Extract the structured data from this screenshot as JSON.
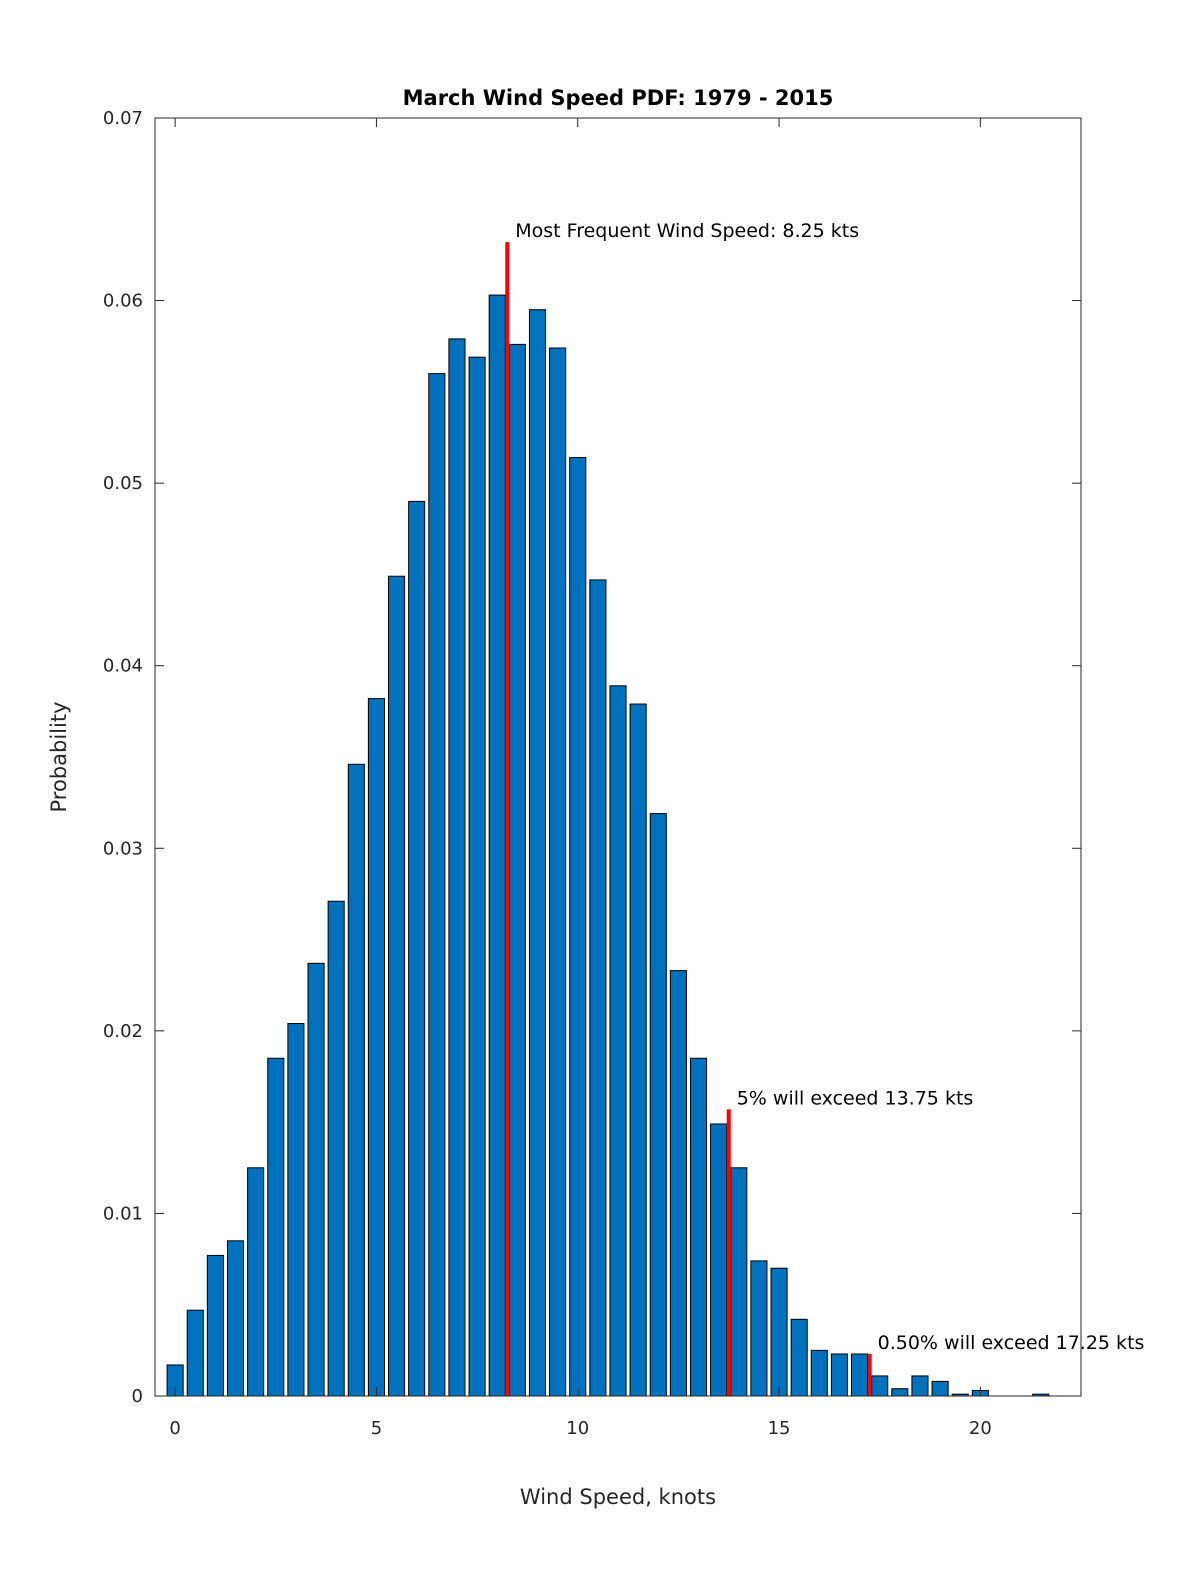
{
  "chart_data": {
    "type": "bar",
    "title": "March Wind Speed PDF: 1979 - 2015",
    "xlabel": "Wind Speed, knots",
    "ylabel": "Probability",
    "xlim": [
      -0.5,
      22.5
    ],
    "ylim": [
      0,
      0.07
    ],
    "xticks": [
      0,
      5,
      10,
      15,
      20
    ],
    "xtick_labels": [
      "0",
      "5",
      "10",
      "15",
      "20"
    ],
    "yticks": [
      0,
      0.01,
      0.02,
      0.03,
      0.04,
      0.05,
      0.06,
      0.07
    ],
    "ytick_labels": [
      "0",
      "0.01",
      "0.02",
      "0.03",
      "0.04",
      "0.05",
      "0.06",
      "0.07"
    ],
    "bar_width": 0.4,
    "grid": false,
    "x": [
      0,
      0.5,
      1,
      1.5,
      2,
      2.5,
      3,
      3.5,
      4,
      4.5,
      5,
      5.5,
      6,
      6.5,
      7,
      7.5,
      8,
      8.5,
      9,
      9.5,
      10,
      10.5,
      11,
      11.5,
      12,
      12.5,
      13,
      13.5,
      14,
      14.5,
      15,
      15.5,
      16,
      16.5,
      17,
      17.5,
      18,
      18.5,
      19,
      19.5,
      20,
      20.5,
      21,
      21.5
    ],
    "values": [
      0.0017,
      0.0047,
      0.0077,
      0.0085,
      0.0125,
      0.0185,
      0.0204,
      0.0237,
      0.0271,
      0.0346,
      0.0382,
      0.0449,
      0.049,
      0.056,
      0.0579,
      0.0569,
      0.0603,
      0.0576,
      0.0595,
      0.0574,
      0.0514,
      0.0447,
      0.0389,
      0.0379,
      0.0319,
      0.0233,
      0.0185,
      0.0149,
      0.0125,
      0.0074,
      0.007,
      0.0042,
      0.0025,
      0.0023,
      0.0023,
      0.0011,
      0.0004,
      0.0011,
      0.0008,
      0.0001,
      0.0003,
      0.0,
      0.0,
      0.0001
    ],
    "bar_color": "#0072BD",
    "annotations": [
      {
        "x": 8.25,
        "y_top": 0.0632,
        "label": "Most Frequent Wind Speed: 8.25 kts",
        "color": "#FF0000"
      },
      {
        "x": 13.75,
        "y_top": 0.0157,
        "label": "5% will exceed 13.75 kts",
        "color": "#FF0000"
      },
      {
        "x": 17.25,
        "y_top": 0.0023,
        "label": "0.50% will exceed 17.25 kts",
        "color": "#FF0000"
      }
    ]
  }
}
